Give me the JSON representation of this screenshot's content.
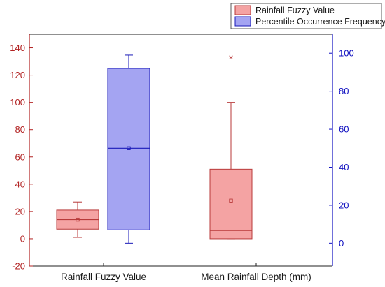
{
  "chart_data": {
    "type": "box",
    "colors": {
      "left_axis": "#b22222",
      "right_axis": "#1010c0",
      "fuzzy_fill": "#f4a3a3",
      "fuzzy_edge": "#b83a3a",
      "freq_fill": "#a4a4f2",
      "freq_edge": "#1a1ab8"
    },
    "categories": [
      "Rainfall Fuzzy Value",
      "Mean Rainfall Depth (mm)"
    ],
    "left_axis": {
      "ylim": [
        -20,
        150
      ],
      "ticks": [
        -20,
        0,
        20,
        40,
        60,
        80,
        100,
        120,
        140
      ]
    },
    "right_axis": {
      "ylim": [
        -12,
        110
      ],
      "ticks": [
        0,
        20,
        40,
        60,
        80,
        100
      ]
    },
    "legend": [
      "Rainfall Fuzzy Value",
      "Percentile Occurrence Frequency"
    ],
    "series": [
      {
        "name": "Rainfall Fuzzy Value",
        "axis": "left",
        "category": "Rainfall Fuzzy Value",
        "whisker_low": 1,
        "q1": 7,
        "median": 14,
        "q3": 21,
        "whisker_high": 27,
        "mean": 14,
        "outliers": []
      },
      {
        "name": "Percentile Occurrence Frequency",
        "axis": "right",
        "category": "Rainfall Fuzzy Value",
        "whisker_low": 0,
        "q1": 7,
        "median": 50,
        "q3": 92,
        "whisker_high": 99,
        "mean": 50,
        "outliers": []
      },
      {
        "name": "Rainfall Fuzzy Value",
        "axis": "left",
        "category": "Mean Rainfall Depth (mm)",
        "whisker_low": 0,
        "q1": 0,
        "median": 6,
        "q3": 51,
        "whisker_high": 100,
        "mean": 28,
        "outliers": [
          133
        ]
      }
    ]
  }
}
